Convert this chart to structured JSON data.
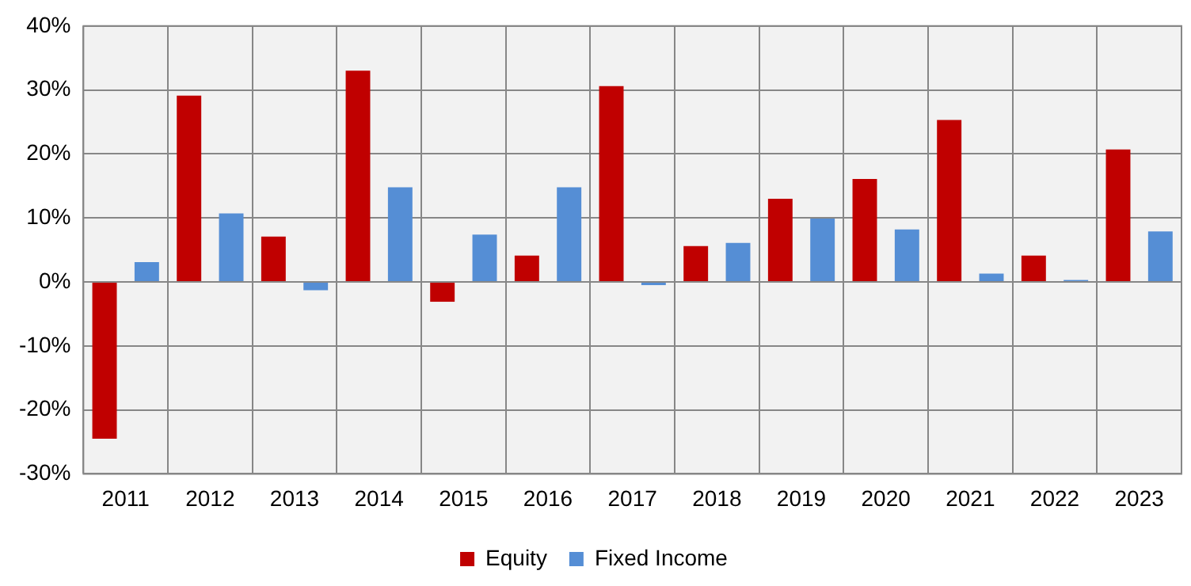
{
  "chart_data": {
    "type": "bar",
    "categories": [
      "2011",
      "2012",
      "2013",
      "2014",
      "2015",
      "2016",
      "2017",
      "2018",
      "2019",
      "2020",
      "2021",
      "2022",
      "2023"
    ],
    "series": [
      {
        "name": "Equity",
        "color": "#c00000",
        "values": [
          -24.5,
          29.1,
          7.1,
          33.0,
          -3.1,
          4.1,
          30.6,
          5.6,
          13.0,
          16.1,
          25.3,
          4.1,
          20.7
        ]
      },
      {
        "name": "Fixed Income",
        "color": "#558ed5",
        "values": [
          3.1,
          10.7,
          -1.3,
          14.8,
          7.4,
          14.8,
          -0.5,
          6.1,
          9.9,
          8.2,
          1.3,
          0.3,
          7.9
        ]
      }
    ],
    "ylim": [
      -30,
      40
    ],
    "yticks": [
      {
        "value": -30,
        "label": "-30%"
      },
      {
        "value": -20,
        "label": "-20%"
      },
      {
        "value": -10,
        "label": "-10%"
      },
      {
        "value": 0,
        "label": "0%"
      },
      {
        "value": 10,
        "label": "10%"
      },
      {
        "value": 20,
        "label": "20%"
      },
      {
        "value": 30,
        "label": "30%"
      },
      {
        "value": 40,
        "label": "40%"
      }
    ],
    "grid": true,
    "legend": "bottom"
  }
}
